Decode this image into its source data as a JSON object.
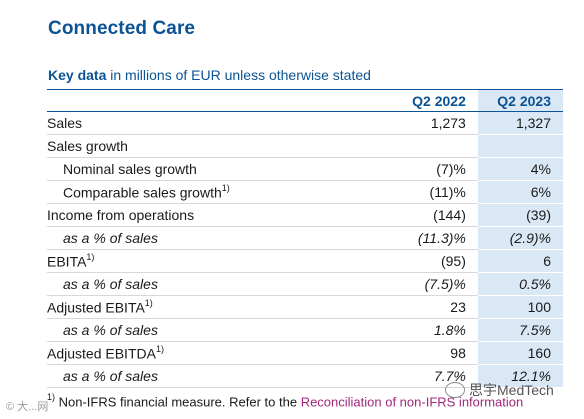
{
  "title": "Connected Care",
  "subtitle": {
    "bold": "Key data",
    "rest": " in millions of EUR unless otherwise stated"
  },
  "table": {
    "headers": [
      "",
      "Q2 2022",
      "Q2 2023"
    ],
    "rows": [
      {
        "label": "Sales",
        "sup": "",
        "v2022": "1,273",
        "v2023": "1,327",
        "indent": false,
        "italic": false
      },
      {
        "label": "Sales growth",
        "sup": "",
        "v2022": "",
        "v2023": "",
        "indent": false,
        "italic": false
      },
      {
        "label": "Nominal sales growth",
        "sup": "",
        "v2022": "(7)%",
        "v2023": "4%",
        "indent": true,
        "italic": false
      },
      {
        "label": "Comparable sales growth",
        "sup": "1)",
        "v2022": "(11)%",
        "v2023": "6%",
        "indent": true,
        "italic": false
      },
      {
        "label": "Income from operations",
        "sup": "",
        "v2022": "(144)",
        "v2023": "(39)",
        "indent": false,
        "italic": false
      },
      {
        "label": "as a % of sales",
        "sup": "",
        "v2022": "(11.3)%",
        "v2023": "(2.9)%",
        "indent": true,
        "italic": true
      },
      {
        "label": "EBITA",
        "sup": "1)",
        "v2022": "(95)",
        "v2023": "6",
        "indent": false,
        "italic": false
      },
      {
        "label": "as a % of sales",
        "sup": "",
        "v2022": "(7.5)%",
        "v2023": "0.5%",
        "indent": true,
        "italic": true
      },
      {
        "label": "Adjusted EBITA",
        "sup": "1)",
        "v2022": "23",
        "v2023": "100",
        "indent": false,
        "italic": false
      },
      {
        "label": "as a % of sales",
        "sup": "",
        "v2022": "1.8%",
        "v2023": "7.5%",
        "indent": true,
        "italic": true
      },
      {
        "label": "Adjusted EBITDA",
        "sup": "1)",
        "v2022": "98",
        "v2023": "160",
        "indent": false,
        "italic": false
      },
      {
        "label": "as a % of sales",
        "sup": "",
        "v2022": "7.7%",
        "v2023": "12.1%",
        "indent": true,
        "italic": true
      }
    ]
  },
  "footnote": {
    "sup": "1)",
    "text": " Non-IFRS financial measure. Refer to the ",
    "link": "Reconciliation of non-IFRS information"
  },
  "watermark": {
    "right": "思宇MedTech",
    "left": "© 大...网"
  },
  "colors": {
    "brand": "#0b5394",
    "highlight_column": "#dae8f5",
    "link": "#a0287c"
  }
}
